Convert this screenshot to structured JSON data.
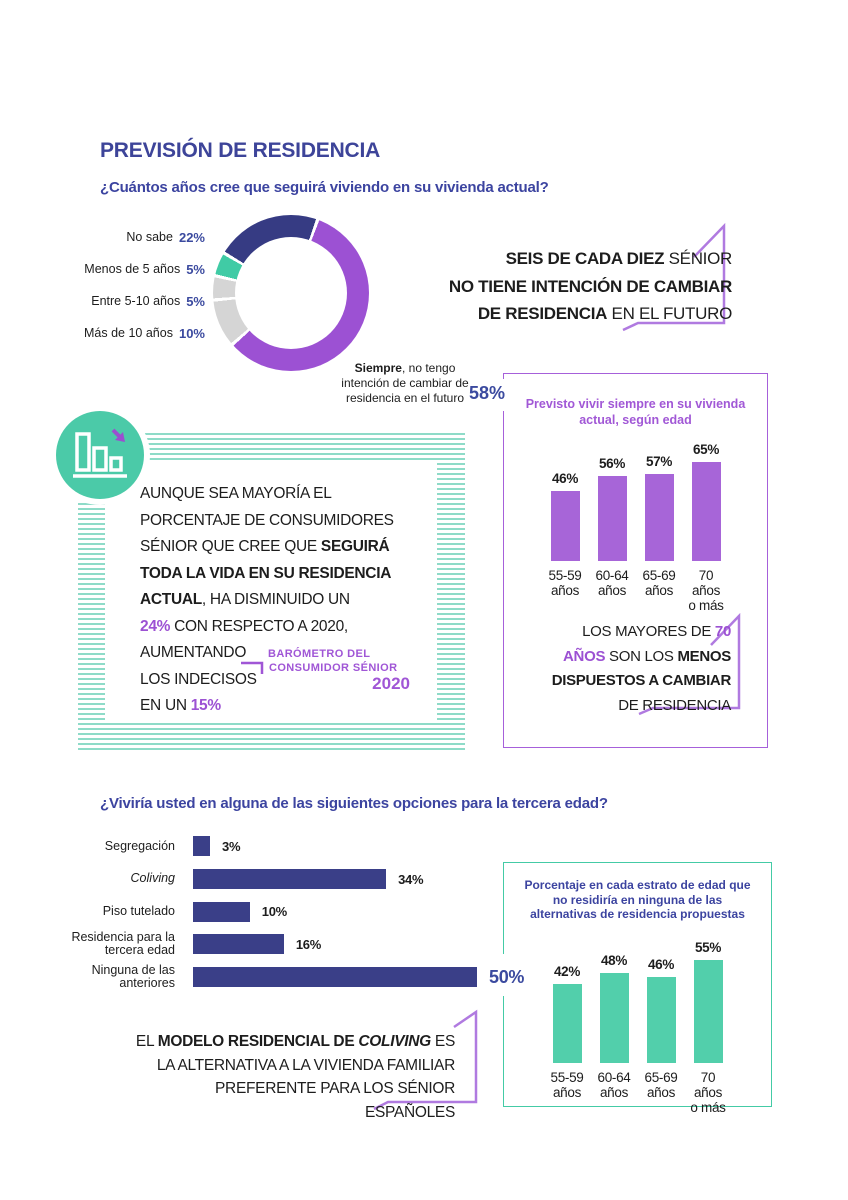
{
  "header": {
    "title": "PREVISIÓN DE RESIDENCIA"
  },
  "colors": {
    "heading_blue": "#3c44a0",
    "navy": "#3a3f88",
    "purple": "#9c51d3",
    "purple_bar": "#a765d8",
    "teal": "#44cba6",
    "teal_bar": "#52cfab",
    "teal_stripe": "#8edbc8",
    "gray": "#d5d5d5"
  },
  "chart_data": [
    {
      "id": "donut-vivienda",
      "type": "pie",
      "question": "¿Cuántos años cree que seguirá viviendo en su vivienda actual?",
      "segments": [
        {
          "label": "Siempre, no tengo intención de cambiar de residencia en el futuro",
          "value": 58,
          "color": "#9c51d3"
        },
        {
          "label": "Más de 10 años",
          "value": 10,
          "color": "#d5d5d5"
        },
        {
          "label": "Entre 5-10 años",
          "value": 5,
          "color": "#d5d5d5"
        },
        {
          "label": "Menos de 5 años",
          "value": 5,
          "color": "#40cba5"
        },
        {
          "label": "No sabe",
          "value": 22,
          "color": "#363b83"
        }
      ],
      "start_angle_deg": 20,
      "gap_deg": 2.5,
      "legend_position": "left"
    },
    {
      "id": "bar-siempre-por-edad",
      "type": "bar",
      "title": "Previsto vivir siempre en su vivienda actual, según edad",
      "categories": [
        "55-59\naños",
        "60-64\naños",
        "65-69\naños",
        "70 años\no más"
      ],
      "values": [
        46,
        56,
        57,
        65
      ],
      "unit": "%",
      "bar_color": "#a765d8"
    },
    {
      "id": "hbar-opciones-tercera-edad",
      "type": "hbar",
      "question": "¿Viviría usted en alguna de las siguientes opciones para la tercera edad?",
      "rows": [
        {
          "label": "Segregación",
          "value": 3
        },
        {
          "label": "Coliving",
          "value": 34,
          "italic": true
        },
        {
          "label": "Piso tutelado",
          "value": 10
        },
        {
          "label": "Residencia para la\ntercera edad",
          "value": 16
        },
        {
          "label": "Ninguna de las\nanteriores",
          "value": 50,
          "emph": true
        }
      ],
      "unit": "%",
      "bar_color": "#3a3f88"
    },
    {
      "id": "bar-no-residiria-por-edad",
      "type": "bar",
      "title": "Porcentaje en cada estrato de edad que no residiría en ninguna de las alternativas de residencia propuestas",
      "categories": [
        "55-59\naños",
        "60-64\naños",
        "65-69\naños",
        "70 años\no más"
      ],
      "values": [
        42,
        48,
        46,
        55
      ],
      "unit": "%",
      "bar_color": "#52cfab"
    }
  ],
  "donut_legend": [
    {
      "label": "No sabe",
      "pct": "22%"
    },
    {
      "label": "Menos de 5 años",
      "pct": "5%"
    },
    {
      "label": "Entre 5-10 años",
      "pct": "5%"
    },
    {
      "label": "Más de 10 años",
      "pct": "10%"
    }
  ],
  "donut_annotation": {
    "bold": "Siempre",
    "rest": ", no tengo intención de cambiar de residencia en el futuro",
    "pct": "58%"
  },
  "callouts": {
    "six": {
      "l1b": "SEIS DE CADA DIEZ",
      "l1r": " SÉNIOR",
      "l2b": "NO TIENE INTENCIÓN DE CAMBIAR",
      "l3b": "DE RESIDENCIA",
      "l3r": " EN EL FUTURO"
    },
    "mayoria": {
      "l1": "AUNQUE SEA MAYORÍA EL",
      "l2": "PORCENTAJE DE CONSUMIDORES",
      "l3r": "SÉNIOR QUE CREE QUE ",
      "l3b": "SEGUIRÁ",
      "l4b": "TODA LA VIDA EN SU RESIDENCIA",
      "l5b": "ACTUAL",
      "l5r": ", HA DISMINUIDO UN",
      "l6p": "24%",
      "l6r": " CON RESPECTO A 2020,",
      "l7": "AUMENTANDO",
      "l8": "LOS INDECISOS",
      "l9r": "EN UN ",
      "l9p": "15%"
    },
    "mayores": {
      "l1r": "LOS MAYORES DE ",
      "l1p": "70",
      "l2p": "AÑOS",
      "l2r": " SON LOS ",
      "l2b": "MENOS",
      "l3b": "DISPUESTOS A CAMBIAR",
      "l4r": "DE RESIDENCIA"
    },
    "coliving": {
      "l1a": "EL ",
      "l1b": "MODELO RESIDENCIAL DE ",
      "l1c": "COLIVING",
      "l1d": " ES",
      "l2": "LA ALTERNATIVA A LA VIVIENDA FAMILIAR",
      "l3": "PREFERENTE PARA LOS SÉNIOR ESPAÑOLES"
    }
  },
  "logo": {
    "line1": "BARÓMETRO DEL",
    "line2": "CONSUMIDOR SÉNIOR",
    "year": "2020"
  }
}
